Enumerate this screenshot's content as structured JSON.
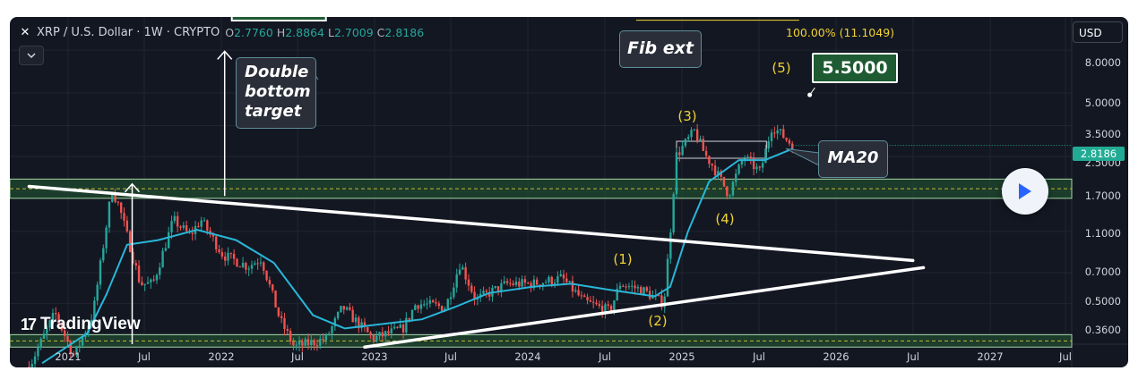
{
  "header": {
    "symbol": "XRP / U.S. Dollar · 1W · CRYPTO",
    "o_label": "O",
    "o_value": "2.7760",
    "h_label": "H",
    "h_value": "2.8864",
    "l_label": "L",
    "l_value": "2.7009",
    "c_label": "C",
    "c_value": "2.8186"
  },
  "currency_button": "USD",
  "logo_text": "TradingView",
  "annotations": {
    "double_bottom": [
      "Double",
      "bottom",
      "target"
    ],
    "fib_ext": "Fib ext",
    "fib_level": "100.00% (11.1049)",
    "target_value": "5.5000",
    "ma20": "MA20"
  },
  "wave_labels": [
    "(1)",
    "(2)",
    "(3)",
    "(4)",
    "(5)"
  ],
  "colors": {
    "background": "#131722",
    "up_candle": "#26a69a",
    "down_candle": "#ef5350",
    "ma_line": "#29b6d8",
    "zone_fill": "#1f4a2e",
    "wave_label": "#f2d234",
    "price_tag": "#22ab94"
  },
  "chart_data": {
    "type": "candlestick",
    "y_scale": "log",
    "ylim": [
      0.32,
      11.5
    ],
    "y_ticks": [
      "8.0000",
      "5.0000",
      "3.5000",
      "2.5000",
      "1.7000",
      "1.1000",
      "0.7000",
      "0.5000",
      "0.3600"
    ],
    "x_ticks": [
      "2021",
      "Jul",
      "2022",
      "Jul",
      "2023",
      "Jul",
      "2024",
      "Jul",
      "2025",
      "Jul",
      "2026",
      "Jul",
      "2027",
      "Jul"
    ],
    "last_price": "2.8186",
    "price_path": [
      [
        "2020-10-01",
        0.25
      ],
      [
        "2020-12-01",
        0.45
      ],
      [
        "2021-01-15",
        0.28
      ],
      [
        "2021-03-01",
        0.45
      ],
      [
        "2021-04-14",
        1.75
      ],
      [
        "2021-05-01",
        1.45
      ],
      [
        "2021-06-20",
        0.62
      ],
      [
        "2021-07-20",
        0.62
      ],
      [
        "2021-09-06",
        1.25
      ],
      [
        "2021-10-15",
        1.05
      ],
      [
        "2021-11-10",
        1.25
      ],
      [
        "2022-01-01",
        0.85
      ],
      [
        "2022-03-01",
        0.75
      ],
      [
        "2022-04-01",
        0.82
      ],
      [
        "2022-05-15",
        0.42
      ],
      [
        "2022-06-18",
        0.31
      ],
      [
        "2022-09-01",
        0.34
      ],
      [
        "2022-10-10",
        0.48
      ],
      [
        "2022-12-20",
        0.34
      ],
      [
        "2023-03-01",
        0.38
      ],
      [
        "2023-04-01",
        0.5
      ],
      [
        "2023-06-10",
        0.48
      ],
      [
        "2023-07-14",
        0.78
      ],
      [
        "2023-08-20",
        0.52
      ],
      [
        "2023-11-01",
        0.62
      ],
      [
        "2024-01-01",
        0.62
      ],
      [
        "2024-03-10",
        0.66
      ],
      [
        "2024-05-01",
        0.51
      ],
      [
        "2024-07-01",
        0.46
      ],
      [
        "2024-07-25",
        0.62
      ],
      [
        "2024-09-15",
        0.58
      ],
      [
        "2024-11-05",
        0.5
      ],
      [
        "2024-11-25",
        1.4
      ],
      [
        "2024-12-03",
        2.5
      ],
      [
        "2025-01-16",
        3.3
      ],
      [
        "2025-02-10",
        2.55
      ],
      [
        "2025-03-01",
        2.25
      ],
      [
        "2025-04-07",
        1.65
      ],
      [
        "2025-05-12",
        2.5
      ],
      [
        "2025-06-20",
        2.1
      ],
      [
        "2025-07-18",
        3.5
      ],
      [
        "2025-08-15",
        3.1
      ],
      [
        "2025-09-05",
        2.82
      ]
    ],
    "ma20_path": [
      [
        "2020-11-01",
        0.26
      ],
      [
        "2021-02-15",
        0.36
      ],
      [
        "2021-04-01",
        0.55
      ],
      [
        "2021-05-20",
        0.95
      ],
      [
        "2021-08-01",
        1.0
      ],
      [
        "2021-11-01",
        1.12
      ],
      [
        "2022-02-01",
        1.0
      ],
      [
        "2022-05-01",
        0.78
      ],
      [
        "2022-08-01",
        0.44
      ],
      [
        "2022-10-15",
        0.38
      ],
      [
        "2023-01-15",
        0.4
      ],
      [
        "2023-04-15",
        0.42
      ],
      [
        "2023-07-01",
        0.48
      ],
      [
        "2023-09-20",
        0.56
      ],
      [
        "2024-01-01",
        0.6
      ],
      [
        "2024-04-01",
        0.62
      ],
      [
        "2024-07-01",
        0.58
      ],
      [
        "2024-10-15",
        0.54
      ],
      [
        "2024-11-20",
        0.6
      ],
      [
        "2025-01-01",
        1.1
      ],
      [
        "2025-02-20",
        1.9
      ],
      [
        "2025-05-01",
        2.4
      ],
      [
        "2025-07-01",
        2.4
      ],
      [
        "2025-09-05",
        2.72
      ]
    ],
    "trendlines": [
      {
        "from": [
          "2020-10-01",
          1.8
        ],
        "to": [
          "2026-06-15",
          0.8
        ]
      },
      {
        "from": [
          "2022-12-01",
          0.31
        ],
        "to": [
          "2026-07-10",
          0.74
        ]
      }
    ],
    "zones": [
      {
        "from": 1.58,
        "to": 1.95
      },
      {
        "from": 0.31,
        "to": 0.355
      }
    ],
    "fib_ext_level": 11.1049,
    "target": 5.5
  }
}
